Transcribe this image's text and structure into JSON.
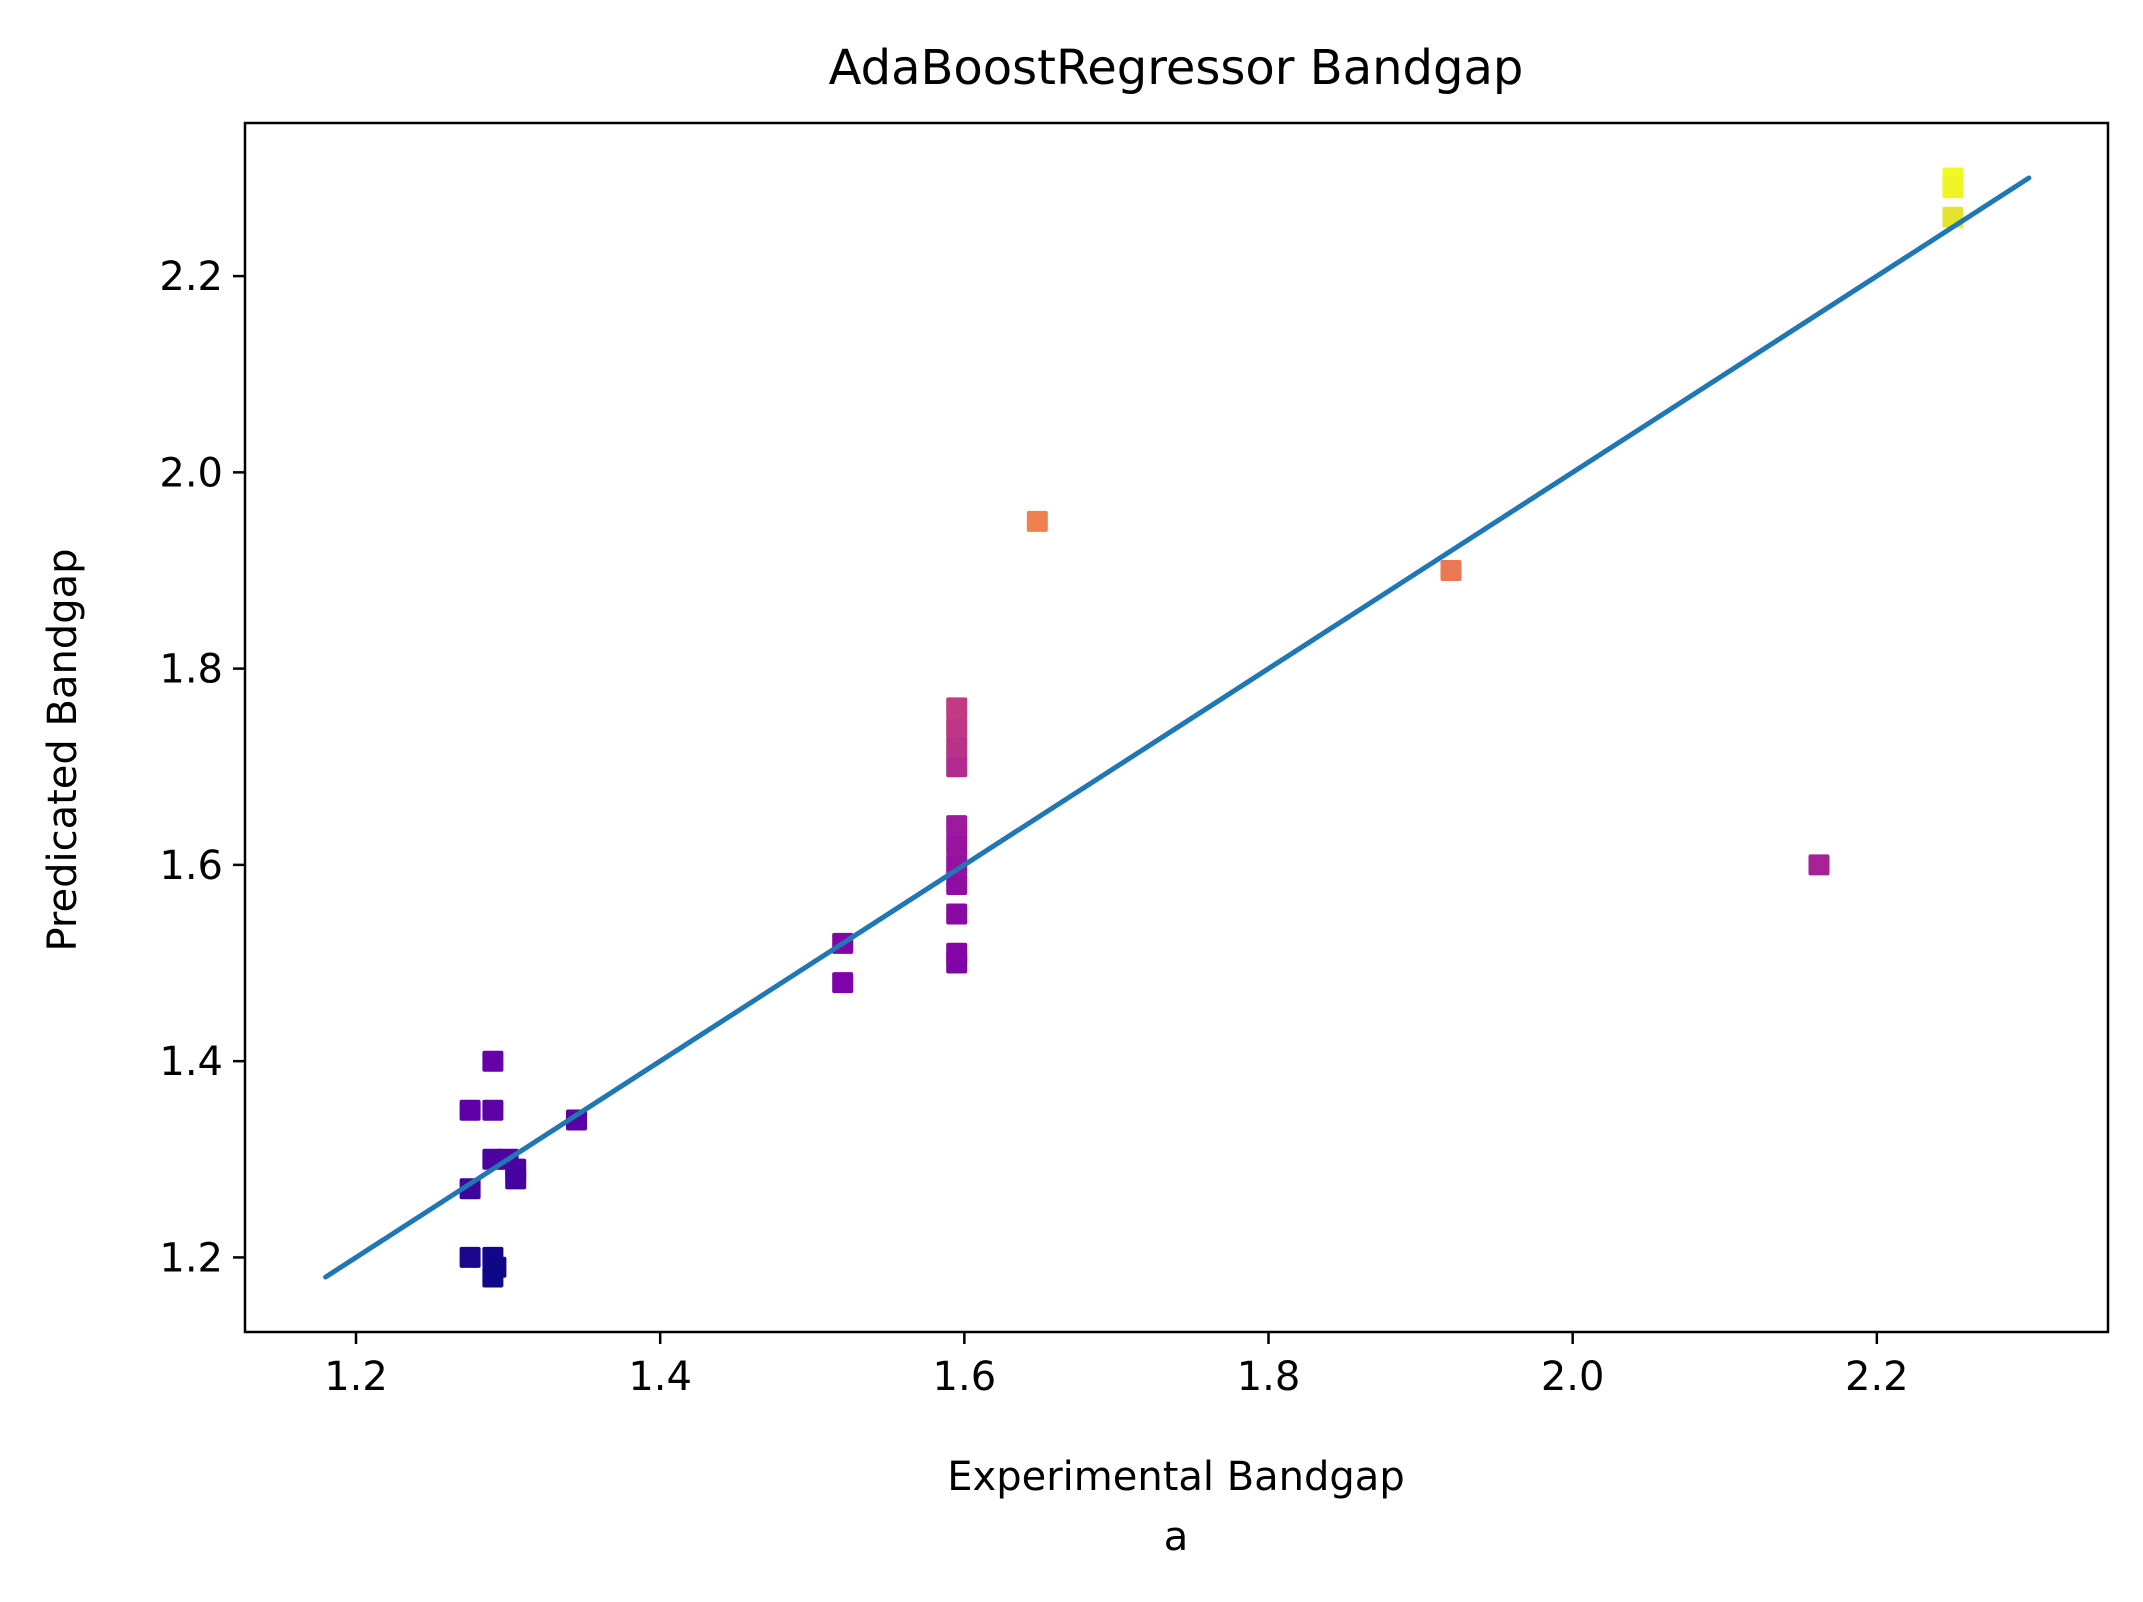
{
  "chart_data": {
    "type": "scatter",
    "title": "AdaBoostRegressor Bandgap",
    "xlabel": "Experimental Bandgap",
    "xlabel_sub": "a",
    "ylabel": "Predicated Bandgap",
    "xlim": [
      1.127,
      2.352
    ],
    "ylim": [
      1.124,
      2.356
    ],
    "xticks": [
      1.2,
      1.4,
      1.6,
      1.8,
      2.0,
      2.2
    ],
    "yticks": [
      1.2,
      1.4,
      1.6,
      1.8,
      2.0,
      2.2
    ],
    "xtick_labels": [
      "1.2",
      "1.4",
      "1.6",
      "1.8",
      "2.0",
      "2.2"
    ],
    "ytick_labels": [
      "1.2",
      "1.4",
      "1.6",
      "1.8",
      "2.0",
      "2.2"
    ],
    "grid": false,
    "colormap": "plasma",
    "points": [
      {
        "x": 1.275,
        "y": 1.2,
        "color": "#1b068d"
      },
      {
        "x": 1.29,
        "y": 1.2,
        "color": "#14068a"
      },
      {
        "x": 1.292,
        "y": 1.19,
        "color": "#100788"
      },
      {
        "x": 1.29,
        "y": 1.18,
        "color": "#0d0887"
      },
      {
        "x": 1.275,
        "y": 1.27,
        "color": "#3f049c"
      },
      {
        "x": 1.275,
        "y": 1.35,
        "color": "#5d01a6"
      },
      {
        "x": 1.29,
        "y": 1.35,
        "color": "#5c01a6"
      },
      {
        "x": 1.29,
        "y": 1.4,
        "color": "#6600a7"
      },
      {
        "x": 1.29,
        "y": 1.3,
        "color": "#4c02a1"
      },
      {
        "x": 1.3,
        "y": 1.3,
        "color": "#4c02a1"
      },
      {
        "x": 1.305,
        "y": 1.29,
        "color": "#4a02a0"
      },
      {
        "x": 1.305,
        "y": 1.28,
        "color": "#47039f"
      },
      {
        "x": 1.345,
        "y": 1.34,
        "color": "#5901a5"
      },
      {
        "x": 1.52,
        "y": 1.52,
        "color": "#8405a7"
      },
      {
        "x": 1.52,
        "y": 1.48,
        "color": "#7e03a8"
      },
      {
        "x": 1.595,
        "y": 1.5,
        "color": "#8104a7"
      },
      {
        "x": 1.595,
        "y": 1.51,
        "color": "#8305a7"
      },
      {
        "x": 1.595,
        "y": 1.55,
        "color": "#8a09a5"
      },
      {
        "x": 1.595,
        "y": 1.58,
        "color": "#900da4"
      },
      {
        "x": 1.595,
        "y": 1.6,
        "color": "#9511a1"
      },
      {
        "x": 1.595,
        "y": 1.62,
        "color": "#9a159f"
      },
      {
        "x": 1.595,
        "y": 1.64,
        "color": "#9e199d"
      },
      {
        "x": 1.595,
        "y": 1.7,
        "color": "#b12a90"
      },
      {
        "x": 1.595,
        "y": 1.72,
        "color": "#b83289"
      },
      {
        "x": 1.595,
        "y": 1.74,
        "color": "#bd3786"
      },
      {
        "x": 1.595,
        "y": 1.76,
        "color": "#c13b82"
      },
      {
        "x": 1.648,
        "y": 1.95,
        "color": "#f0804e"
      },
      {
        "x": 1.92,
        "y": 1.9,
        "color": "#ec7853"
      },
      {
        "x": 2.162,
        "y": 1.6,
        "color": "#a82296"
      },
      {
        "x": 2.25,
        "y": 2.3,
        "color": "#f0f921"
      },
      {
        "x": 2.25,
        "y": 2.29,
        "color": "#eef426"
      },
      {
        "x": 2.25,
        "y": 2.26,
        "color": "#e4e430"
      }
    ],
    "line": {
      "x": [
        1.18,
        2.3
      ],
      "y": [
        1.18,
        2.3
      ],
      "color": "#1f77b4"
    }
  }
}
